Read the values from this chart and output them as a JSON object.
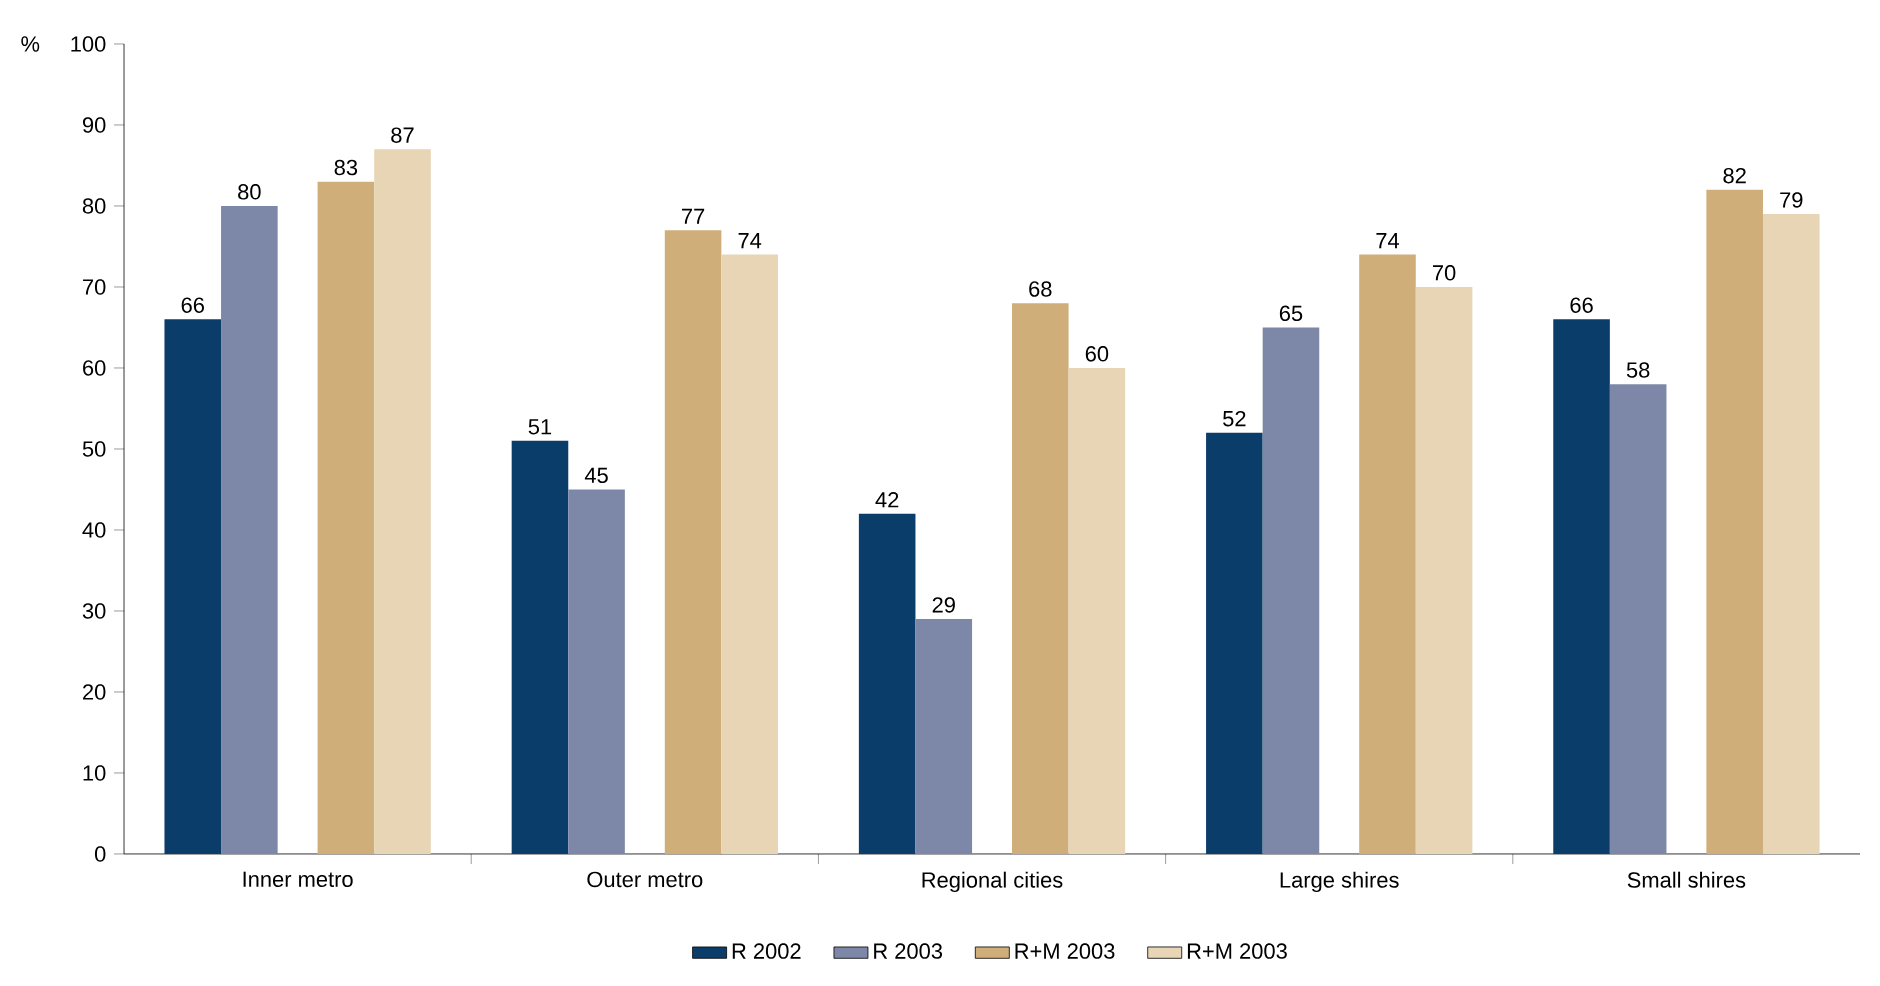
{
  "chart_data": {
    "type": "bar",
    "ylabel": "%",
    "categories": [
      "Inner metro",
      "Outer metro",
      "Regional cities",
      "Large shires",
      "Small shires"
    ],
    "series": [
      {
        "name": "R 2002",
        "color": "#0b3d6b",
        "values": [
          66,
          51,
          42,
          52,
          66
        ]
      },
      {
        "name": "R 2003",
        "color": "#7d88a8",
        "values": [
          80,
          45,
          29,
          65,
          58
        ]
      },
      {
        "name": "R+M 2003",
        "color": "#cfae79",
        "values": [
          83,
          77,
          68,
          74,
          82
        ]
      },
      {
        "name": "R+M 2003",
        "color": "#e7d5b5",
        "values": [
          87,
          74,
          60,
          70,
          79
        ]
      }
    ],
    "ylim": [
      0,
      100
    ],
    "yticks": [
      0,
      10,
      20,
      30,
      40,
      50,
      60,
      70,
      80,
      90,
      100
    ],
    "data_labels": true,
    "grid": false,
    "legend": "bottom"
  }
}
